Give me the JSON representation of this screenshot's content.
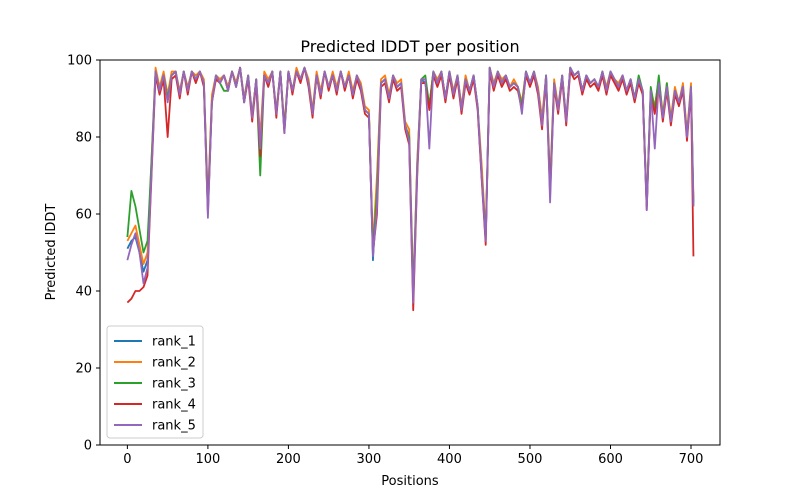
{
  "chart_data": {
    "type": "line",
    "title": "Predicted lDDT per position",
    "xlabel": "Positions",
    "ylabel": "Predicted lDDT",
    "xlim": [
      -34,
      736
    ],
    "ylim": [
      0,
      100
    ],
    "xticks": [
      0,
      100,
      200,
      300,
      400,
      500,
      600,
      700
    ],
    "yticks": [
      0,
      20,
      40,
      60,
      80,
      100
    ],
    "legend_position": "lower-left",
    "x_grid": [
      0,
      5,
      10,
      15,
      20,
      25,
      30,
      35,
      40,
      45,
      50,
      55,
      60,
      65,
      70,
      75,
      80,
      85,
      90,
      95,
      100,
      105,
      110,
      115,
      120,
      125,
      130,
      135,
      140,
      145,
      150,
      155,
      160,
      165,
      170,
      175,
      180,
      185,
      190,
      195,
      200,
      205,
      210,
      215,
      220,
      225,
      230,
      235,
      240,
      245,
      250,
      255,
      260,
      265,
      270,
      275,
      280,
      285,
      290,
      295,
      300,
      305,
      310,
      315,
      320,
      325,
      330,
      335,
      340,
      345,
      350,
      355,
      360,
      365,
      370,
      375,
      380,
      385,
      390,
      395,
      400,
      405,
      410,
      415,
      420,
      425,
      430,
      435,
      440,
      445,
      450,
      455,
      460,
      465,
      470,
      475,
      480,
      485,
      490,
      495,
      500,
      505,
      510,
      515,
      520,
      525,
      530,
      535,
      540,
      545,
      550,
      555,
      560,
      565,
      570,
      575,
      580,
      585,
      590,
      595,
      600,
      605,
      610,
      615,
      620,
      625,
      630,
      635,
      640,
      645,
      650,
      655,
      660,
      665,
      670,
      675,
      680,
      685,
      690,
      695,
      700,
      703
    ],
    "series": [
      {
        "name": "rank_1",
        "color": "#1f77b4",
        "values": [
          51,
          53,
          54,
          50,
          45,
          48,
          72,
          97,
          92,
          96,
          90,
          96,
          97,
          91,
          97,
          92,
          97,
          95,
          97,
          94,
          62,
          90,
          96,
          95,
          96,
          93,
          97,
          94,
          98,
          90,
          96,
          85,
          95,
          79,
          96,
          94,
          97,
          86,
          97,
          82,
          97,
          92,
          97,
          95,
          98,
          94,
          86,
          96,
          91,
          97,
          93,
          96,
          92,
          97,
          93,
          96,
          91,
          96,
          93,
          87,
          86,
          48,
          68,
          94,
          95,
          90,
          96,
          93,
          94,
          83,
          80,
          38,
          73,
          95,
          94,
          88,
          97,
          94,
          97,
          90,
          97,
          91,
          96,
          87,
          95,
          92,
          96,
          88,
          70,
          53,
          98,
          93,
          97,
          94,
          96,
          93,
          94,
          93,
          88,
          97,
          94,
          97,
          92,
          83,
          96,
          67,
          94,
          87,
          96,
          84,
          98,
          96,
          97,
          92,
          96,
          94,
          95,
          93,
          97,
          92,
          97,
          95,
          93,
          96,
          92,
          95,
          90,
          95,
          92,
          62,
          92,
          87,
          94,
          85,
          93,
          84,
          92,
          89,
          93,
          80,
          93,
          63
        ]
      },
      {
        "name": "rank_2",
        "color": "#ff7f0e",
        "values": [
          53,
          55,
          57,
          52,
          47,
          50,
          74,
          98,
          93,
          97,
          91,
          97,
          97,
          92,
          97,
          93,
          97,
          96,
          97,
          95,
          63,
          91,
          96,
          95,
          96,
          93,
          97,
          94,
          98,
          90,
          96,
          86,
          95,
          80,
          97,
          95,
          97,
          87,
          97,
          83,
          97,
          92,
          98,
          95,
          98,
          95,
          87,
          97,
          92,
          97,
          93,
          97,
          93,
          97,
          93,
          97,
          92,
          96,
          94,
          88,
          87,
          52,
          70,
          95,
          96,
          91,
          96,
          94,
          95,
          84,
          82,
          40,
          74,
          95,
          95,
          88,
          97,
          95,
          97,
          90,
          97,
          92,
          96,
          88,
          96,
          92,
          96,
          88,
          73,
          55,
          98,
          94,
          97,
          95,
          96,
          93,
          95,
          93,
          89,
          97,
          94,
          97,
          93,
          85,
          96,
          68,
          95,
          88,
          96,
          85,
          98,
          96,
          97,
          92,
          96,
          94,
          95,
          93,
          97,
          93,
          97,
          95,
          94,
          96,
          92,
          95,
          90,
          95,
          92,
          63,
          92,
          88,
          95,
          86,
          94,
          85,
          93,
          89,
          94,
          81,
          94,
          64
        ]
      },
      {
        "name": "rank_3",
        "color": "#2ca02c",
        "values": [
          54,
          66,
          62,
          56,
          50,
          53,
          74,
          97,
          92,
          96,
          90,
          96,
          97,
          91,
          97,
          92,
          97,
          95,
          97,
          94,
          61,
          89,
          96,
          94,
          92,
          92,
          97,
          93,
          98,
          89,
          96,
          85,
          95,
          70,
          96,
          94,
          97,
          86,
          97,
          82,
          97,
          92,
          97,
          95,
          98,
          94,
          86,
          96,
          91,
          97,
          93,
          96,
          92,
          97,
          93,
          96,
          91,
          96,
          93,
          87,
          86,
          50,
          66,
          94,
          95,
          90,
          96,
          93,
          94,
          83,
          80,
          39,
          72,
          95,
          96,
          88,
          97,
          94,
          97,
          90,
          97,
          91,
          96,
          87,
          95,
          92,
          96,
          88,
          70,
          54,
          98,
          93,
          97,
          94,
          96,
          93,
          94,
          93,
          88,
          97,
          94,
          97,
          92,
          83,
          96,
          66,
          94,
          87,
          96,
          84,
          98,
          96,
          97,
          92,
          96,
          94,
          95,
          93,
          97,
          92,
          97,
          95,
          93,
          96,
          92,
          95,
          90,
          96,
          92,
          62,
          93,
          87,
          96,
          85,
          94,
          84,
          92,
          89,
          93,
          80,
          93,
          62
        ]
      },
      {
        "name": "rank_4",
        "color": "#d62728",
        "values": [
          37,
          38,
          40,
          40,
          41,
          44,
          70,
          96,
          91,
          95,
          80,
          95,
          96,
          90,
          97,
          91,
          97,
          94,
          97,
          93,
          60,
          89,
          95,
          94,
          96,
          92,
          97,
          93,
          98,
          89,
          95,
          84,
          94,
          75,
          96,
          93,
          97,
          85,
          97,
          81,
          97,
          91,
          97,
          94,
          98,
          93,
          85,
          96,
          90,
          97,
          92,
          96,
          91,
          97,
          92,
          96,
          90,
          95,
          92,
          86,
          85,
          50,
          60,
          93,
          94,
          89,
          95,
          92,
          93,
          82,
          78,
          35,
          70,
          94,
          94,
          87,
          96,
          93,
          96,
          89,
          96,
          90,
          95,
          86,
          94,
          91,
          95,
          87,
          69,
          52,
          97,
          92,
          96,
          93,
          95,
          92,
          93,
          92,
          87,
          96,
          93,
          96,
          91,
          82,
          95,
          65,
          93,
          86,
          95,
          83,
          97,
          95,
          96,
          91,
          95,
          93,
          94,
          92,
          96,
          91,
          96,
          94,
          92,
          95,
          91,
          94,
          89,
          94,
          91,
          61,
          91,
          86,
          93,
          84,
          92,
          83,
          91,
          88,
          92,
          79,
          92,
          49
        ]
      },
      {
        "name": "rank_5",
        "color": "#9467bd",
        "values": [
          48,
          52,
          55,
          50,
          42,
          46,
          71,
          97,
          92,
          96,
          89,
          96,
          97,
          91,
          97,
          92,
          97,
          95,
          97,
          94,
          59,
          89,
          96,
          94,
          96,
          92,
          97,
          93,
          98,
          89,
          96,
          85,
          95,
          77,
          96,
          94,
          97,
          86,
          97,
          81,
          97,
          92,
          97,
          95,
          98,
          94,
          86,
          96,
          91,
          97,
          93,
          96,
          92,
          97,
          93,
          96,
          91,
          96,
          93,
          87,
          86,
          49,
          62,
          94,
          95,
          90,
          96,
          93,
          94,
          83,
          79,
          37,
          71,
          95,
          95,
          77,
          97,
          94,
          97,
          90,
          97,
          91,
          96,
          87,
          95,
          92,
          96,
          88,
          70,
          53,
          98,
          93,
          97,
          94,
          96,
          93,
          94,
          93,
          86,
          97,
          94,
          97,
          92,
          83,
          96,
          63,
          94,
          87,
          96,
          84,
          98,
          96,
          97,
          92,
          96,
          94,
          95,
          93,
          97,
          92,
          97,
          95,
          93,
          96,
          92,
          95,
          90,
          95,
          92,
          61,
          92,
          77,
          94,
          85,
          93,
          84,
          92,
          89,
          93,
          80,
          93,
          62
        ]
      }
    ]
  }
}
